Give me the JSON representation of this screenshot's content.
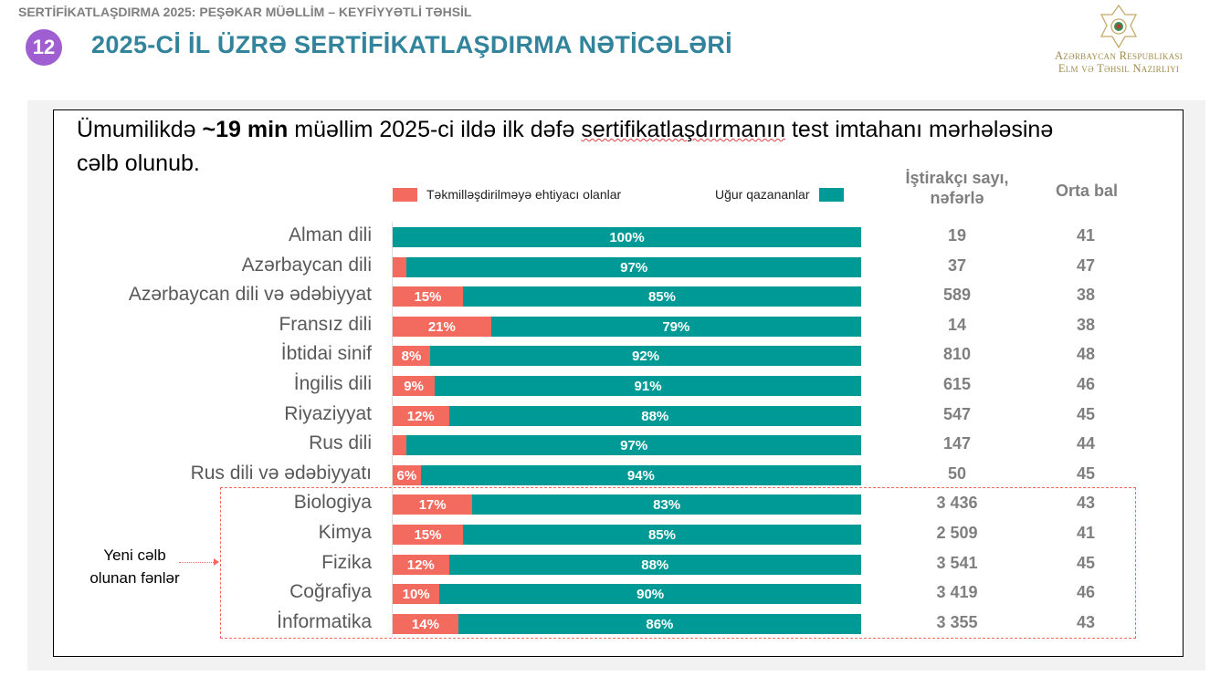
{
  "header": {
    "topline": "SERTİFİKATLAŞDIRMA 2025: PEŞƏKAR MÜƏLLİM – KEYFİYYƏTLİ TƏHSİL",
    "slide_number": "12",
    "title": "2025-Cİ İL ÜZRƏ SERTİFİKATLAŞDIRMA NƏTİCƏLƏRİ"
  },
  "logo": {
    "line1": "Azərbaycan Respublikası",
    "line2": "Elm və Təhsil Nazirliyi"
  },
  "headline": {
    "pre": "Ümumilikdə ",
    "bold": "~19 min",
    "mid": " müəllim 2025-ci ildə ilk dəfə ",
    "underlined": "sertifikatlaşdırmanın",
    "post": " test imtahanı mərhələsinə cəlb olunub."
  },
  "legend": {
    "fail": "Təkmilləşdirilməyə ehtiyacı olanlar",
    "pass": "Uğur qazananlar"
  },
  "columns": {
    "count": "İştirakçı sayı, nəfərlə",
    "avg": "Orta bal"
  },
  "note": {
    "line1": "Yeni cəlb",
    "line2": "olunan fənlər"
  },
  "colors": {
    "fail": "#f26b5e",
    "pass": "#009a96"
  },
  "chart_data": {
    "type": "bar",
    "stacked": true,
    "orientation": "horizontal",
    "categories": [
      "Alman dili",
      "Azərbaycan dili",
      "Azərbaycan dili və ədəbiyyat",
      "Fransız dili",
      "İbtidai sinif",
      "İngilis dili",
      "Riyaziyyat",
      "Rus dili",
      "Rus dili və ədəbiyyatı",
      "Biologiya",
      "Kimya",
      "Fizika",
      "Coğrafiya",
      "İnformatika"
    ],
    "series": [
      {
        "name": "Təkmilləşdirilməyə ehtiyacı olanlar",
        "values": [
          0,
          3,
          15,
          21,
          8,
          9,
          12,
          3,
          6,
          17,
          15,
          12,
          10,
          14
        ]
      },
      {
        "name": "Uğur qazananlar",
        "values": [
          100,
          97,
          85,
          79,
          92,
          91,
          88,
          97,
          94,
          83,
          85,
          88,
          90,
          86
        ]
      }
    ],
    "counts": [
      "19",
      "37",
      "589",
      "14",
      "810",
      "615",
      "547",
      "147",
      "50",
      "3 436",
      "2 509",
      "3 541",
      "3 419",
      "3 355"
    ],
    "averages": [
      "41",
      "47",
      "38",
      "38",
      "48",
      "46",
      "45",
      "44",
      "45",
      "43",
      "41",
      "45",
      "46",
      "43"
    ],
    "xlim": [
      0,
      100
    ],
    "legend": "top"
  }
}
